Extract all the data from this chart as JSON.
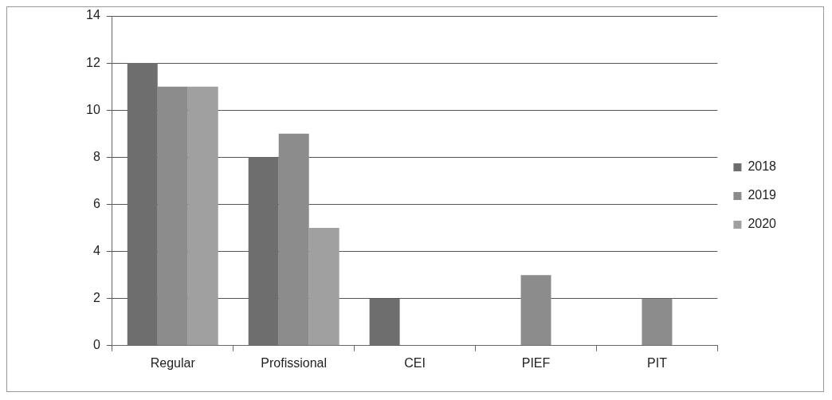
{
  "chart_data": {
    "type": "bar",
    "categories": [
      "Regular",
      "Profissional",
      "CEI",
      "PIEF",
      "PIT"
    ],
    "series": [
      {
        "name": "2018",
        "color": "#6e6e6e",
        "values": [
          12,
          8,
          2,
          0,
          0
        ]
      },
      {
        "name": "2019",
        "color": "#8c8c8c",
        "values": [
          11,
          9,
          0,
          3,
          2
        ]
      },
      {
        "name": "2020",
        "color": "#a0a0a0",
        "values": [
          11,
          5,
          0,
          0,
          0
        ]
      }
    ],
    "ylim": [
      0,
      14
    ],
    "yticks": [
      0,
      2,
      4,
      6,
      8,
      10,
      12,
      14
    ],
    "grid": "y",
    "legend": "right"
  }
}
